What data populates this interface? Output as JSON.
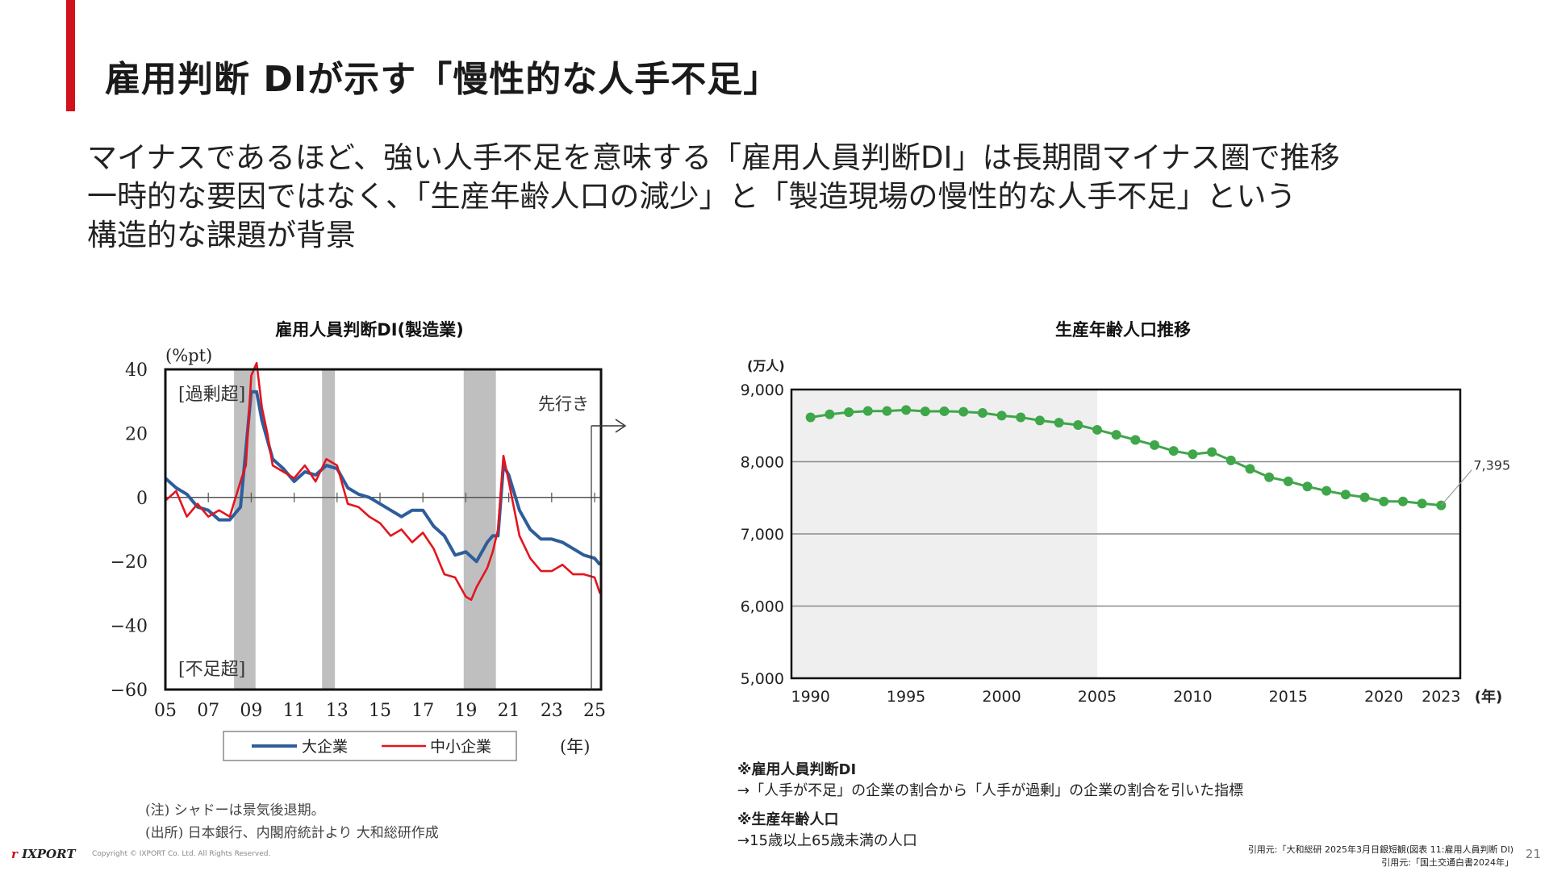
{
  "slide": {
    "title": "雇用判断 DIが示す「慢性的な人手不足」",
    "lead_lines": [
      "マイナスであるほど、強い人手不足を意味する「雇用人員判断DI」は長期間マイナス圏で推移",
      "一時的な要因ではなく、「生産年齢人口の減少」と「製造現場の慢性的な人手不足」という",
      "構造的な課題が背景"
    ],
    "page_number": "21",
    "footer": {
      "logo": "IXPORT",
      "copyright": "Copyright © IXPORT Co. Ltd. All Rights Reserved."
    }
  },
  "notes": {
    "shadow_note": "(注) シャドーは景気後退期。",
    "source_note": "(出所) 日本銀行、内閣府統計より 大和総研作成",
    "def1_head": "※雇用人員判断DI",
    "def1_body": "→「人手が不足」の企業の割合から「人手が過剰」の企業の割合を引いた指標",
    "def2_head": "※生産年齢人口",
    "def2_body": "→15歳以上65歳未満の人口",
    "source1": "引用元:「大和総研 2025年3月日銀短観(図表 11:雇用人員判断 DI)",
    "source2": "引用元:「国土交通白書2024年」"
  },
  "colors": {
    "accent_red": "#d0121b",
    "large_firms": "#2e5d9b",
    "small_firms": "#e4141e",
    "population": "#3fa64a",
    "shadow": "#bfbfbf",
    "forecast_bg": "#efefef"
  },
  "chart_data": [
    {
      "type": "line",
      "title": "雇用人員判断DI(製造業)",
      "ylabel": "(%pt)",
      "xlabel": "(年)",
      "ylim": [
        -60,
        40
      ],
      "yticks": [
        40,
        20,
        0,
        -20,
        -40,
        -60
      ],
      "ytick_labels": [
        "40",
        "20",
        "0",
        "−20",
        "−40",
        "−60"
      ],
      "xlim": [
        2005,
        2025.3
      ],
      "xticks": [
        2005,
        2007,
        2009,
        2011,
        2013,
        2015,
        2017,
        2019,
        2021,
        2023,
        2025
      ],
      "xtick_labels": [
        "05",
        "07",
        "09",
        "11",
        "13",
        "15",
        "17",
        "19",
        "21",
        "23",
        "25"
      ],
      "annotations": {
        "excess": "[過剰超]",
        "shortage": "[不足超]",
        "forecast": "先行き"
      },
      "shaded_periods": [
        [
          2008.2,
          2009.2
        ],
        [
          2012.3,
          2012.9
        ],
        [
          2018.9,
          2020.4
        ]
      ],
      "legend_position": "bottom",
      "grid": false,
      "series": [
        {
          "name": "大企業",
          "color": "#2e5d9b",
          "x": [
            2005.0,
            2005.5,
            2006.0,
            2006.5,
            2007.0,
            2007.5,
            2008.0,
            2008.5,
            2009.0,
            2009.25,
            2009.5,
            2009.75,
            2010.0,
            2010.5,
            2011.0,
            2011.5,
            2012.0,
            2012.5,
            2013.0,
            2013.5,
            2014.0,
            2014.5,
            2015.0,
            2015.5,
            2016.0,
            2016.5,
            2017.0,
            2017.5,
            2018.0,
            2018.5,
            2019.0,
            2019.5,
            2020.0,
            2020.25,
            2020.5,
            2020.75,
            2021.0,
            2021.5,
            2022.0,
            2022.5,
            2023.0,
            2023.5,
            2024.0,
            2024.5,
            2025.0,
            2025.25
          ],
          "values": [
            6,
            3,
            1,
            -3,
            -4,
            -7,
            -7,
            -3,
            33,
            33,
            24,
            18,
            12,
            9,
            5,
            8,
            7,
            10,
            9,
            3,
            1,
            0,
            -2,
            -4,
            -6,
            -4,
            -4,
            -9,
            -12,
            -18,
            -17,
            -20,
            -14,
            -12,
            -12,
            10,
            7,
            -4,
            -10,
            -13,
            -13,
            -14,
            -16,
            -18,
            -19,
            -21
          ]
        },
        {
          "name": "中小企業",
          "color": "#e4141e",
          "x": [
            2005.0,
            2005.5,
            2006.0,
            2006.5,
            2007.0,
            2007.5,
            2008.0,
            2008.5,
            2008.75,
            2009.0,
            2009.25,
            2009.5,
            2009.75,
            2010.0,
            2010.5,
            2011.0,
            2011.5,
            2012.0,
            2012.5,
            2013.0,
            2013.5,
            2014.0,
            2014.5,
            2015.0,
            2015.5,
            2016.0,
            2016.5,
            2017.0,
            2017.5,
            2018.0,
            2018.5,
            2019.0,
            2019.25,
            2019.5,
            2020.0,
            2020.25,
            2020.5,
            2020.75,
            2021.0,
            2021.5,
            2022.0,
            2022.5,
            2023.0,
            2023.5,
            2024.0,
            2024.5,
            2025.0,
            2025.25
          ],
          "values": [
            -1,
            2,
            -6,
            -2,
            -6,
            -4,
            -6,
            5,
            10,
            38,
            42,
            28,
            20,
            10,
            8,
            6,
            10,
            5,
            12,
            10,
            -2,
            -3,
            -6,
            -8,
            -12,
            -10,
            -14,
            -11,
            -16,
            -24,
            -25,
            -31,
            -32,
            -28,
            -22,
            -17,
            -10,
            13,
            5,
            -12,
            -19,
            -23,
            -23,
            -21,
            -24,
            -24,
            -25,
            -30
          ]
        }
      ]
    },
    {
      "type": "line",
      "title": "生産年齢人口推移",
      "ylabel": "(万人)",
      "xlabel": "(年)",
      "ylim": [
        5000,
        9000
      ],
      "yticks": [
        5000,
        6000,
        7000,
        8000,
        9000
      ],
      "ytick_labels": [
        "5,000",
        "6,000",
        "7,000",
        "8,000",
        "9,000"
      ],
      "xlim": [
        1989,
        2024
      ],
      "xticks": [
        1990,
        1995,
        2000,
        2005,
        2010,
        2015,
        2020,
        2023
      ],
      "xtick_labels": [
        "1990",
        "1995",
        "2000",
        "2005",
        "2010",
        "2015",
        "2020",
        "2023"
      ],
      "shaded_until": 2005,
      "grid": true,
      "callout": "7,395",
      "series": [
        {
          "name": "",
          "color": "#3fa64a",
          "x": [
            1990,
            1991,
            1992,
            1993,
            1994,
            1995,
            1996,
            1997,
            1998,
            1999,
            2000,
            2001,
            2002,
            2003,
            2004,
            2005,
            2006,
            2007,
            2008,
            2009,
            2010,
            2011,
            2012,
            2013,
            2014,
            2015,
            2016,
            2017,
            2018,
            2019,
            2020,
            2021,
            2022,
            2023
          ],
          "values": [
            8614,
            8656,
            8686,
            8702,
            8703,
            8716,
            8697,
            8699,
            8692,
            8676,
            8638,
            8614,
            8571,
            8540,
            8508,
            8442,
            8373,
            8302,
            8230,
            8149,
            8103,
            8134,
            8018,
            7901,
            7785,
            7728,
            7656,
            7596,
            7545,
            7507,
            7449,
            7450,
            7421,
            7395
          ]
        }
      ]
    }
  ]
}
